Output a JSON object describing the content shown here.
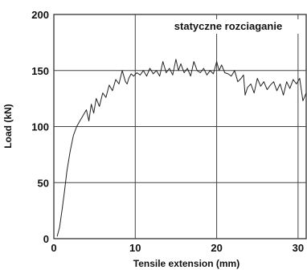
{
  "chart_data": {
    "type": "line",
    "title": "statyczne rozciaganie",
    "xlabel": "Tensile extension (mm)",
    "ylabel": "Load (kN)",
    "xlim": [
      0,
      31
    ],
    "ylim": [
      0,
      200
    ],
    "x_ticks": [
      0,
      10,
      20,
      30
    ],
    "y_ticks": [
      0,
      50,
      100,
      150,
      200
    ],
    "x_tick_labels": [
      "0",
      "10",
      "20",
      "30"
    ],
    "y_tick_labels": [
      "0",
      "50",
      "100",
      "150",
      "200"
    ],
    "grid": true,
    "colors": {
      "line": "#222222",
      "grid": "#444444",
      "background": "#ffffff"
    },
    "series": [
      {
        "x": [
          0.4,
          0.7,
          1.0,
          1.3,
          1.6,
          2.0,
          2.4,
          2.8,
          3.2,
          3.6,
          4.0,
          4.3,
          4.6,
          4.9,
          5.2,
          5.6,
          6.0,
          6.4,
          6.8,
          7.2,
          7.6,
          8.0,
          8.4,
          8.8,
          9.0,
          9.2,
          9.5,
          9.8,
          10.2,
          10.6,
          11.0,
          11.4,
          11.8,
          12.2,
          12.6,
          13.0,
          13.4,
          13.8,
          14.2,
          14.6,
          15.0,
          15.3,
          15.6,
          16.0,
          16.4,
          16.8,
          17.2,
          17.6,
          18.0,
          18.4,
          18.8,
          19.2,
          19.6,
          20.0,
          20.3,
          20.6,
          21.0,
          21.4,
          21.8,
          22.2,
          22.6,
          23.0,
          23.3,
          23.5,
          23.8,
          24.2,
          24.6,
          25.0,
          25.4,
          25.8,
          26.2,
          26.6,
          27.0,
          27.4,
          27.8,
          28.2,
          28.6,
          29.0,
          29.4,
          29.8,
          30.2,
          30.6,
          31.0
        ],
        "y": [
          2,
          10,
          25,
          42,
          60,
          78,
          92,
          100,
          105,
          110,
          115,
          105,
          120,
          112,
          125,
          118,
          130,
          126,
          137,
          132,
          142,
          138,
          150,
          140,
          138,
          143,
          147,
          145,
          148,
          146,
          150,
          145,
          152,
          147,
          150,
          145,
          158,
          148,
          152,
          146,
          160,
          150,
          156,
          148,
          152,
          145,
          158,
          150,
          148,
          152,
          146,
          150,
          147,
          158,
          150,
          155,
          148,
          147,
          145,
          150,
          140,
          143,
          146,
          128,
          135,
          138,
          130,
          143,
          136,
          140,
          133,
          137,
          140,
          132,
          138,
          128,
          140,
          134,
          142,
          138,
          143,
          123,
          130
        ]
      }
    ]
  }
}
